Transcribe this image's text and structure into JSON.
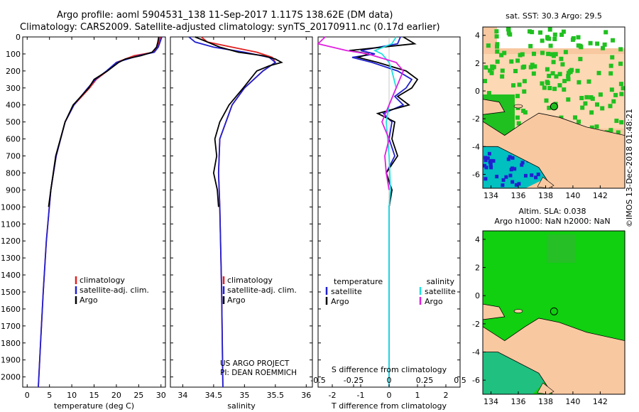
{
  "header": {
    "line1": "Argo profile: aoml 5904531_138 11-Sep-2017 1.117S 138.62E (DM data)",
    "line2": "Climatology: CARS2009. Satellite-adjusted climatology: synTS_20170911.nc (0.17d earlier)"
  },
  "footer_stamp": "©IMOS 13-Dec-2018 01:48:21",
  "colors": {
    "climatology": "#e02020",
    "satellite": "#2020d0",
    "argo": "#000000",
    "sat_salinity": "#20e0e0",
    "argo_salinity": "#e020e0",
    "land": "#f8c8a0",
    "ocean_green": "#20c020",
    "cyan": "#00c0c0"
  },
  "chart_data": [
    {
      "id": "temperature",
      "type": "line",
      "xlabel": "temperature (deg C)",
      "ylabel": "depth",
      "xlim": [
        -1,
        31
      ],
      "ylim": [
        2060,
        0
      ],
      "xticks": [
        0,
        5,
        10,
        15,
        20,
        25,
        30
      ],
      "yticks": [
        0,
        100,
        200,
        300,
        400,
        500,
        600,
        700,
        800,
        900,
        1000,
        1100,
        1200,
        1300,
        1400,
        1500,
        1600,
        1700,
        1800,
        1900,
        2000
      ],
      "legend": {
        "placement": "lower-center",
        "entries": [
          "climatology",
          "satellite-adj. clim.",
          "Argo"
        ]
      },
      "series": [
        {
          "name": "climatology",
          "color": "#e02020",
          "depth": [
            0,
            30,
            60,
            90,
            110,
            130,
            150,
            200,
            250,
            300,
            400,
            500,
            700,
            900,
            1200,
            1500,
            1800,
            2060
          ],
          "values": [
            29.8,
            29.6,
            29.2,
            28.4,
            24,
            22,
            20,
            18,
            15.5,
            14,
            10.5,
            8.5,
            6.5,
            5.3,
            4.3,
            3.6,
            3.0,
            2.5
          ]
        },
        {
          "name": "satellite-adj. clim.",
          "color": "#2020d0",
          "depth": [
            0,
            30,
            60,
            90,
            110,
            130,
            150,
            200,
            250,
            300,
            400,
            500,
            700,
            900,
            1200,
            1500,
            1800,
            2060
          ],
          "values": [
            30.2,
            29.8,
            29.4,
            28.5,
            25,
            22.5,
            20,
            17.8,
            15.3,
            13.6,
            10.5,
            8.5,
            6.5,
            5.3,
            4.3,
            3.6,
            3.0,
            2.5
          ]
        },
        {
          "name": "Argo",
          "color": "#000000",
          "depth": [
            0,
            30,
            60,
            90,
            110,
            130,
            150,
            200,
            250,
            300,
            400,
            500,
            700,
            900,
            1000
          ],
          "values": [
            29.5,
            29.3,
            29,
            28,
            25.5,
            22,
            20.5,
            18,
            15,
            13.8,
            10.3,
            8.5,
            6.4,
            5.3,
            4.8
          ]
        }
      ]
    },
    {
      "id": "salinity",
      "type": "line",
      "xlabel": "salinity",
      "ylabel": "depth",
      "xlim": [
        33.8,
        36.1
      ],
      "ylim": [
        2060,
        0
      ],
      "xticks": [
        34,
        34.5,
        35,
        35.5,
        36
      ],
      "legend": {
        "placement": "lower-center",
        "entries": [
          "climatology",
          "satellite-adj. clim.",
          "Argo"
        ]
      },
      "annotation": [
        "US ARGO PROJECT",
        "PI: DEAN ROEMMICH"
      ],
      "series": [
        {
          "name": "climatology",
          "color": "#e02020",
          "depth": [
            0,
            30,
            60,
            90,
            120,
            150,
            200,
            300,
            400,
            500,
            600,
            800,
            1000,
            1500,
            2060
          ],
          "values": [
            34.3,
            34.4,
            34.8,
            35.2,
            35.45,
            35.5,
            35.3,
            35.0,
            34.8,
            34.7,
            34.6,
            34.58,
            34.6,
            34.63,
            34.65
          ]
        },
        {
          "name": "satellite-adj. clim.",
          "color": "#2020d0",
          "depth": [
            0,
            30,
            60,
            90,
            120,
            150,
            200,
            300,
            400,
            500,
            600,
            800,
            1000,
            1500,
            2060
          ],
          "values": [
            34.1,
            34.2,
            34.5,
            35.0,
            35.4,
            35.5,
            35.3,
            35.0,
            34.8,
            34.7,
            34.6,
            34.58,
            34.6,
            34.63,
            34.65
          ]
        },
        {
          "name": "Argo",
          "color": "#000000",
          "depth": [
            0,
            30,
            60,
            90,
            110,
            130,
            150,
            170,
            200,
            300,
            400,
            500,
            600,
            700,
            800,
            900,
            1000
          ],
          "values": [
            34.2,
            34.4,
            34.6,
            34.9,
            35.3,
            35.5,
            35.6,
            35.4,
            35.2,
            34.98,
            34.75,
            34.6,
            34.52,
            34.55,
            34.5,
            34.56,
            34.58
          ]
        }
      ]
    },
    {
      "id": "difference",
      "type": "line",
      "xlabel": "T difference from climatology",
      "xlabel_top": "S difference from climatology",
      "xlim": [
        -2.5,
        2.5
      ],
      "ylim": [
        2060,
        0
      ],
      "xticks": [
        -2,
        -1,
        0,
        1,
        2
      ],
      "xticks_top": [
        -0.5,
        -0.25,
        0,
        0.25,
        0.5
      ],
      "xticks_top_labels": [
        "-0.5",
        "-0.25",
        "0",
        "0.25",
        "0.5"
      ],
      "legend": {
        "placement": "lower",
        "left_title": "temperature",
        "right_title": "salinity",
        "left": [
          "satellite",
          "Argo"
        ],
        "right": [
          "satellite",
          "Argo"
        ]
      },
      "series": [
        {
          "name": "T satellite",
          "color": "#2020d0",
          "depth": [
            0,
            40,
            80,
            100,
            120,
            150,
            200,
            250,
            300,
            350,
            400,
            450,
            500,
            600,
            700,
            800,
            900,
            1000,
            1500,
            2060
          ],
          "values": [
            0.4,
            0.3,
            -1.0,
            -0.5,
            -1.3,
            -0.6,
            0.3,
            0.8,
            0.6,
            0.2,
            0.5,
            -0.2,
            0.1,
            0.0,
            0.2,
            -0.1,
            0.1,
            0.0,
            0.0,
            0.0
          ]
        },
        {
          "name": "T Argo",
          "color": "#000000",
          "depth": [
            0,
            40,
            80,
            100,
            120,
            150,
            200,
            250,
            300,
            350,
            400,
            450,
            500,
            600,
            700,
            800,
            900,
            1000
          ],
          "values": [
            0.5,
            0.9,
            -1.4,
            -0.7,
            -1.1,
            -0.4,
            0.6,
            1.0,
            0.8,
            0.3,
            0.7,
            -0.4,
            0.2,
            0.1,
            0.3,
            -0.1,
            0.1,
            0.0
          ]
        },
        {
          "name": "S satellite",
          "color": "#20e0e0",
          "depth": [
            0,
            40,
            80,
            100,
            150,
            200,
            300,
            400,
            500,
            700,
            900,
            1000,
            1500,
            2060
          ],
          "values": [
            0.05,
            0.02,
            -0.1,
            -0.05,
            0.0,
            0.02,
            0.05,
            0.0,
            -0.02,
            0.0,
            0.01,
            0.0,
            0.0,
            0.0
          ]
        },
        {
          "name": "S Argo",
          "color": "#e020e0",
          "depth": [
            0,
            40,
            60,
            80,
            100,
            150,
            200,
            300,
            400,
            500,
            600,
            700,
            800,
            900
          ],
          "values": [
            -0.45,
            -0.5,
            -0.4,
            -0.3,
            -0.15,
            0.05,
            0.1,
            0.05,
            0.0,
            -0.05,
            0.0,
            -0.03,
            -0.02,
            0.0
          ]
        }
      ]
    }
  ],
  "maps": [
    {
      "id": "sst_map",
      "title": "sat. SST: 30.3 Argo: 29.5",
      "xticks": [
        "134",
        "136",
        "138",
        "140",
        "142"
      ],
      "yticks": [
        "4",
        "2",
        "0",
        "-2",
        "-4",
        "-6"
      ],
      "argo_position": {
        "lon": 138.62,
        "lat": -1.117
      }
    },
    {
      "id": "sla_map",
      "title": "Altim. SLA: 0.038",
      "subtitle": "Argo h1000: NaN h2000: NaN",
      "xticks": [
        "134",
        "136",
        "138",
        "140",
        "142"
      ],
      "yticks": [
        "4",
        "2",
        "0",
        "-2",
        "-4",
        "-6"
      ],
      "argo_position": {
        "lon": 138.62,
        "lat": -1.117
      }
    }
  ]
}
